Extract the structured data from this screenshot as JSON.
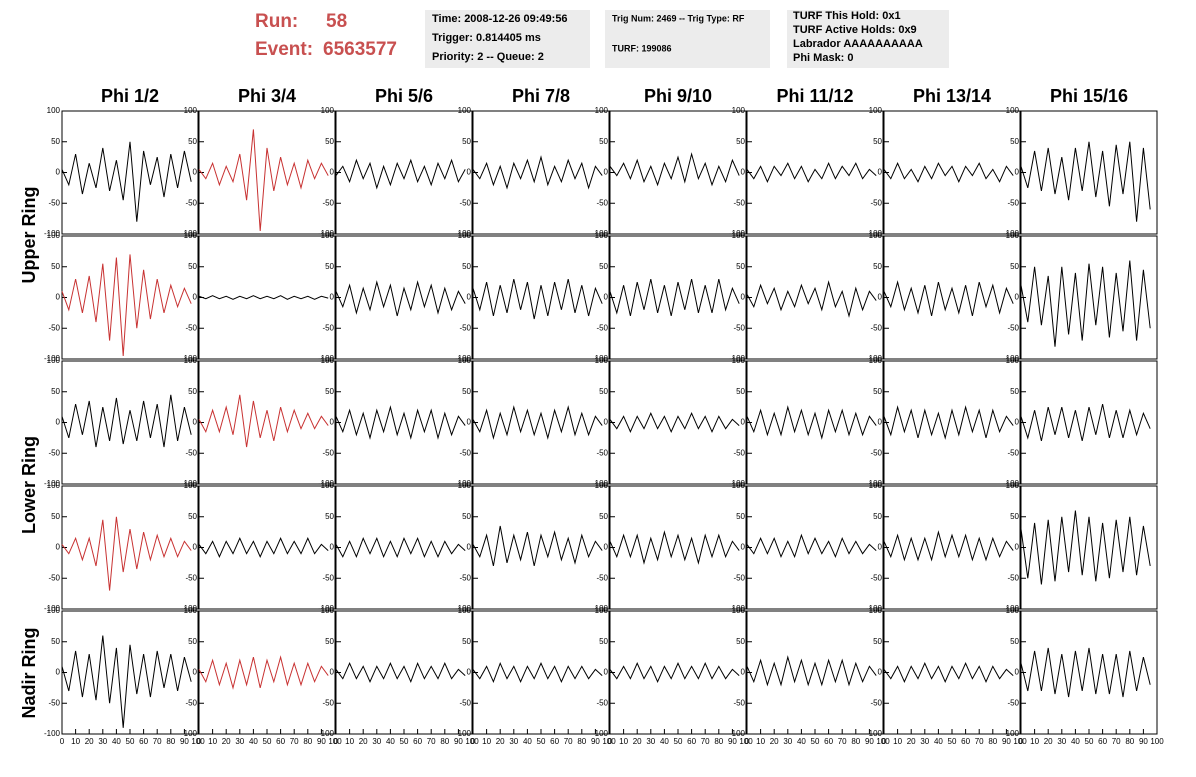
{
  "header": {
    "run_label": "Run:",
    "run": 58,
    "event_label": "Event:",
    "event": 6563577,
    "info_boxes": [
      [
        "Time: 2008-12-26 09:49:56",
        "Trigger: 0.814405 ms",
        "Priority: 2 -- Queue: 2"
      ],
      [
        "Trig Num: 2469 -- Trig Type: RF",
        "TURF: 199086"
      ],
      [
        "TURF This Hold: 0x1",
        "TURF Active Holds: 0x9",
        "Labrador AAAAAAAAAA",
        "Phi Mask: 0"
      ]
    ]
  },
  "chart_data": {
    "type": "line",
    "columns": [
      "Phi 1/2",
      "Phi 3/4",
      "Phi 5/6",
      "Phi 7/8",
      "Phi 9/10",
      "Phi 11/12",
      "Phi 13/14",
      "Phi 15/16"
    ],
    "ring_labels": [
      "Upper Ring",
      "Lower Ring",
      "Nadir Ring"
    ],
    "xlim": [
      0,
      100
    ],
    "xticks": [
      0,
      10,
      20,
      30,
      40,
      50,
      60,
      70,
      80,
      90,
      100
    ],
    "ylim": [
      -100,
      100
    ],
    "yticks": [
      -100,
      -50,
      0,
      50,
      100
    ],
    "x": [
      0,
      5,
      10,
      15,
      20,
      25,
      30,
      35,
      40,
      45,
      50,
      55,
      60,
      65,
      70,
      75,
      80,
      85,
      90,
      95
    ],
    "panels": [
      [
        {
          "color": "#000000",
          "values": [
            5,
            -20,
            30,
            -35,
            15,
            -25,
            40,
            -30,
            20,
            -45,
            50,
            -80,
            35,
            -20,
            25,
            -40,
            30,
            -25,
            35,
            -15
          ]
        },
        {
          "color": "#c83232",
          "values": [
            5,
            -10,
            15,
            -20,
            10,
            -15,
            30,
            -45,
            70,
            -95,
            40,
            -30,
            25,
            -20,
            15,
            -25,
            20,
            -10,
            15,
            -5
          ]
        },
        {
          "color": "#000000",
          "values": [
            -5,
            10,
            -15,
            20,
            -10,
            15,
            -25,
            10,
            -20,
            15,
            -10,
            20,
            -15,
            10,
            -20,
            15,
            -10,
            20,
            -15,
            5
          ]
        },
        {
          "color": "#000000",
          "values": [
            5,
            -10,
            15,
            -20,
            10,
            -25,
            15,
            -10,
            20,
            -15,
            25,
            -20,
            10,
            -15,
            20,
            -10,
            15,
            -25,
            10,
            -5
          ]
        },
        {
          "color": "#000000",
          "values": [
            10,
            -5,
            15,
            -10,
            20,
            -15,
            10,
            -20,
            15,
            -10,
            25,
            -15,
            30,
            -10,
            15,
            -20,
            10,
            -15,
            20,
            -5
          ]
        },
        {
          "color": "#000000",
          "values": [
            5,
            -10,
            10,
            -15,
            10,
            -5,
            15,
            -10,
            10,
            -15,
            5,
            -10,
            15,
            -10,
            10,
            -5,
            15,
            -10,
            5,
            -5
          ]
        },
        {
          "color": "#000000",
          "values": [
            5,
            -10,
            15,
            -10,
            5,
            -15,
            10,
            -10,
            15,
            -5,
            10,
            -15,
            10,
            -5,
            15,
            -10,
            5,
            -15,
            10,
            -5
          ]
        },
        {
          "color": "#000000",
          "values": [
            10,
            -25,
            35,
            -30,
            40,
            -35,
            25,
            -45,
            40,
            -30,
            50,
            -40,
            35,
            -55,
            45,
            -35,
            50,
            -80,
            40,
            -60
          ]
        }
      ],
      [
        {
          "color": "#c83232",
          "values": [
            10,
            -20,
            30,
            -25,
            35,
            -40,
            55,
            -70,
            65,
            -95,
            70,
            -50,
            45,
            -35,
            30,
            -25,
            20,
            -15,
            15,
            -10
          ]
        },
        {
          "color": "#000000",
          "values": [
            2,
            -2,
            3,
            -2,
            2,
            -3,
            2,
            -2,
            3,
            -2,
            2,
            -2,
            3,
            -3,
            2,
            -2,
            2,
            -3,
            2,
            -1
          ]
        },
        {
          "color": "#000000",
          "values": [
            10,
            -15,
            20,
            -25,
            15,
            -20,
            25,
            -15,
            20,
            -30,
            15,
            -20,
            25,
            -15,
            20,
            -25,
            15,
            -20,
            10,
            -10
          ]
        },
        {
          "color": "#000000",
          "values": [
            15,
            -20,
            25,
            -30,
            20,
            -25,
            30,
            -20,
            25,
            -35,
            20,
            -30,
            25,
            -20,
            30,
            -25,
            20,
            -30,
            15,
            -10
          ]
        },
        {
          "color": "#000000",
          "values": [
            10,
            -25,
            20,
            -30,
            25,
            -20,
            30,
            -25,
            20,
            -30,
            25,
            -20,
            30,
            -25,
            20,
            -25,
            30,
            -20,
            15,
            -10
          ]
        },
        {
          "color": "#000000",
          "values": [
            5,
            -15,
            20,
            -10,
            15,
            -20,
            10,
            -15,
            20,
            -10,
            15,
            -20,
            25,
            -15,
            10,
            -30,
            15,
            -20,
            10,
            -5
          ]
        },
        {
          "color": "#000000",
          "values": [
            10,
            -15,
            25,
            -20,
            15,
            -25,
            20,
            -30,
            25,
            -20,
            15,
            -25,
            20,
            -30,
            25,
            -15,
            20,
            -25,
            15,
            -10
          ]
        },
        {
          "color": "#000000",
          "values": [
            20,
            -40,
            50,
            -45,
            35,
            -80,
            50,
            -60,
            40,
            -70,
            55,
            -45,
            50,
            -65,
            40,
            -55,
            60,
            -70,
            45,
            -50
          ]
        }
      ],
      [
        {
          "color": "#000000",
          "values": [
            10,
            -25,
            30,
            -20,
            35,
            -40,
            25,
            -30,
            40,
            -35,
            20,
            -30,
            35,
            -25,
            30,
            -40,
            45,
            -30,
            25,
            -20
          ]
        },
        {
          "color": "#c83232",
          "values": [
            5,
            -15,
            20,
            -15,
            25,
            -20,
            45,
            -40,
            35,
            -25,
            20,
            -30,
            25,
            -15,
            20,
            -10,
            15,
            -10,
            10,
            -5
          ]
        },
        {
          "color": "#000000",
          "values": [
            10,
            -15,
            20,
            -20,
            15,
            -25,
            20,
            -15,
            25,
            -20,
            15,
            -25,
            20,
            -15,
            20,
            -25,
            15,
            -20,
            10,
            -5
          ]
        },
        {
          "color": "#000000",
          "values": [
            5,
            -15,
            20,
            -25,
            15,
            -20,
            25,
            -15,
            20,
            -20,
            15,
            -25,
            20,
            -15,
            25,
            -20,
            15,
            -20,
            10,
            -5
          ]
        },
        {
          "color": "#000000",
          "values": [
            5,
            -10,
            10,
            -15,
            10,
            -10,
            15,
            -10,
            10,
            -15,
            10,
            -10,
            15,
            -10,
            10,
            -15,
            10,
            -10,
            5,
            -5
          ]
        },
        {
          "color": "#000000",
          "values": [
            10,
            -15,
            20,
            -20,
            15,
            -20,
            25,
            -15,
            20,
            -20,
            15,
            -25,
            20,
            -15,
            20,
            -20,
            15,
            -20,
            10,
            -5
          ]
        },
        {
          "color": "#000000",
          "values": [
            10,
            -20,
            25,
            -15,
            20,
            -25,
            20,
            -20,
            15,
            -25,
            20,
            -20,
            25,
            -15,
            20,
            -25,
            20,
            -15,
            10,
            -5
          ]
        },
        {
          "color": "#000000",
          "values": [
            10,
            -25,
            20,
            -30,
            25,
            -20,
            25,
            -25,
            20,
            -30,
            25,
            -20,
            30,
            -25,
            20,
            -25,
            20,
            -20,
            15,
            -10
          ]
        }
      ],
      [
        {
          "color": "#c83232",
          "values": [
            5,
            -10,
            15,
            -20,
            15,
            -30,
            45,
            -70,
            50,
            -40,
            30,
            -35,
            25,
            -20,
            20,
            -15,
            15,
            -15,
            10,
            -5
          ]
        },
        {
          "color": "#000000",
          "values": [
            5,
            -10,
            10,
            -15,
            10,
            -10,
            15,
            -10,
            10,
            -15,
            10,
            -10,
            15,
            -10,
            10,
            -10,
            15,
            -10,
            5,
            -5
          ]
        },
        {
          "color": "#000000",
          "values": [
            5,
            -15,
            10,
            -15,
            15,
            -10,
            15,
            -15,
            10,
            -15,
            15,
            -10,
            15,
            -15,
            10,
            -15,
            10,
            -10,
            5,
            -5
          ]
        },
        {
          "color": "#000000",
          "values": [
            5,
            -15,
            20,
            -30,
            35,
            -25,
            20,
            -20,
            25,
            -30,
            20,
            -15,
            25,
            -20,
            15,
            -25,
            20,
            -15,
            10,
            -5
          ]
        },
        {
          "color": "#000000",
          "values": [
            10,
            -15,
            20,
            -15,
            20,
            -25,
            15,
            -20,
            25,
            -15,
            20,
            -20,
            15,
            -25,
            20,
            -15,
            20,
            -15,
            10,
            -5
          ]
        },
        {
          "color": "#000000",
          "values": [
            5,
            -10,
            15,
            -10,
            15,
            -15,
            10,
            -15,
            20,
            -10,
            15,
            -10,
            10,
            -15,
            15,
            -10,
            10,
            -10,
            5,
            -5
          ]
        },
        {
          "color": "#000000",
          "values": [
            10,
            -15,
            20,
            -20,
            15,
            -20,
            15,
            -20,
            25,
            -15,
            20,
            -15,
            20,
            -20,
            15,
            -20,
            15,
            -15,
            10,
            -5
          ]
        },
        {
          "color": "#000000",
          "values": [
            30,
            -50,
            40,
            -60,
            45,
            -55,
            50,
            -40,
            60,
            -45,
            50,
            -55,
            40,
            -50,
            45,
            -40,
            50,
            -45,
            35,
            -30
          ]
        }
      ],
      [
        {
          "color": "#000000",
          "values": [
            10,
            -30,
            35,
            -40,
            30,
            -45,
            60,
            -50,
            40,
            -90,
            45,
            -35,
            30,
            -40,
            35,
            -25,
            30,
            -30,
            25,
            -15
          ]
        },
        {
          "color": "#c83232",
          "values": [
            5,
            -15,
            20,
            -20,
            15,
            -25,
            20,
            -20,
            25,
            -25,
            20,
            -15,
            25,
            -20,
            15,
            -20,
            15,
            -15,
            10,
            -5
          ]
        },
        {
          "color": "#000000",
          "values": [
            5,
            -10,
            15,
            -10,
            10,
            -15,
            10,
            -10,
            15,
            -10,
            10,
            -15,
            15,
            -10,
            10,
            -10,
            15,
            -10,
            5,
            -5
          ]
        },
        {
          "color": "#000000",
          "values": [
            5,
            -10,
            10,
            -15,
            15,
            -10,
            10,
            -15,
            10,
            -10,
            15,
            -10,
            10,
            -15,
            10,
            -10,
            10,
            -10,
            5,
            -5
          ]
        },
        {
          "color": "#000000",
          "values": [
            5,
            -10,
            10,
            -10,
            15,
            -10,
            10,
            -15,
            10,
            -10,
            15,
            -10,
            10,
            -10,
            15,
            -10,
            10,
            -10,
            5,
            -5
          ]
        },
        {
          "color": "#000000",
          "values": [
            10,
            -15,
            20,
            -20,
            15,
            -20,
            25,
            -15,
            20,
            -20,
            15,
            -20,
            20,
            -15,
            20,
            -20,
            15,
            -15,
            10,
            -5
          ]
        },
        {
          "color": "#000000",
          "values": [
            5,
            -10,
            10,
            -15,
            10,
            -10,
            15,
            -10,
            10,
            -15,
            10,
            -10,
            15,
            -10,
            10,
            -15,
            10,
            -10,
            5,
            -5
          ]
        },
        {
          "color": "#000000",
          "values": [
            15,
            -30,
            35,
            -30,
            40,
            -35,
            30,
            -40,
            35,
            -30,
            40,
            -35,
            30,
            -35,
            30,
            -40,
            35,
            -30,
            25,
            -20
          ]
        }
      ]
    ]
  }
}
